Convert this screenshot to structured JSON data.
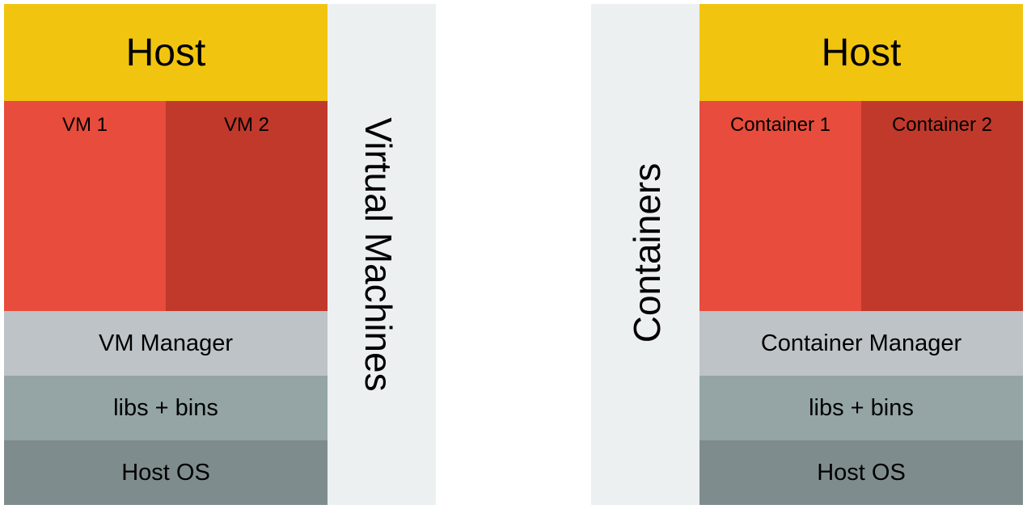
{
  "vm_stack": {
    "host_label": "Host",
    "units": [
      {
        "label": "VM 1"
      },
      {
        "label": "VM 2"
      }
    ],
    "manager_label": "VM Manager",
    "libs_label": "libs + bins",
    "os_label": "Host OS",
    "side_title": "Virtual Machines"
  },
  "container_stack": {
    "host_label": "Host",
    "units": [
      {
        "label": "Container 1"
      },
      {
        "label": "Container 2"
      }
    ],
    "manager_label": "Container Manager",
    "libs_label": "libs + bins",
    "os_label": "Host OS",
    "side_title": "Containers"
  },
  "colors": {
    "host": "#f1c40f",
    "unit_primary": "#e74c3c",
    "unit_secondary": "#c0392b",
    "manager": "#bdc3c7",
    "libs": "#95a5a6",
    "host_os": "#7f8c8d",
    "side_panel": "#ecf0f1"
  }
}
